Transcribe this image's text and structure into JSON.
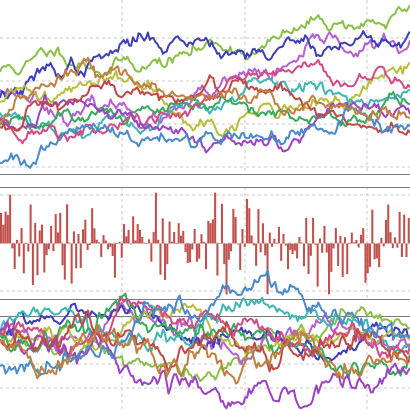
{
  "chart_data": [
    {
      "type": "line",
      "panel": "top",
      "grid": true,
      "x": {
        "range": [
          0,
          100
        ]
      },
      "y": {
        "range": [
          -4,
          12
        ]
      },
      "series": [
        {
          "color": "#8abf4a",
          "start": 5.5,
          "end": 11.8,
          "seed": 11,
          "vol": 0.28
        },
        {
          "color": "#b65fd1",
          "start": 3.8,
          "end": 8.2,
          "seed": 23,
          "vol": 0.3
        },
        {
          "color": "#3d3fb5",
          "start": 3.0,
          "end": 9.0,
          "seed": 37,
          "vol": 0.32
        },
        {
          "color": "#b9bd3e",
          "start": 2.6,
          "end": 6.9,
          "seed": 41,
          "vol": 0.3
        },
        {
          "color": "#3fb6b5",
          "start": 1.6,
          "end": 4.2,
          "seed": 53,
          "vol": 0.3
        },
        {
          "color": "#3aa95e",
          "start": 0.4,
          "end": 2.6,
          "seed": 61,
          "vol": 0.3
        },
        {
          "color": "#d44a86",
          "start": 1.1,
          "end": 3.9,
          "seed": 71,
          "vol": 0.3
        },
        {
          "color": "#9b43c1",
          "start": 0.9,
          "end": 1.6,
          "seed": 83,
          "vol": 0.28
        },
        {
          "color": "#c04848",
          "start": 0.2,
          "end": 0.1,
          "seed": 97,
          "vol": 0.3
        },
        {
          "color": "#4a8ac9",
          "start": -3.2,
          "end": -0.2,
          "seed": 101,
          "vol": 0.3
        },
        {
          "color": "#c08040",
          "start": 0.5,
          "end": 0.6,
          "seed": 113,
          "vol": 0.3
        }
      ]
    },
    {
      "type": "bar",
      "panel": "middle",
      "grid": true,
      "x": {
        "range": [
          0,
          100
        ]
      },
      "y": {
        "range": [
          -3.5,
          3.5
        ]
      },
      "series": [
        {
          "color": "#c0504d",
          "n": 180,
          "seed": 7,
          "amp": 3.1
        }
      ]
    },
    {
      "type": "line",
      "panel": "bottom",
      "grid": true,
      "x": {
        "range": [
          0,
          100
        ]
      },
      "y": {
        "range": [
          -8,
          1
        ]
      },
      "series": [
        {
          "color": "#8abf4a",
          "start": 0.0,
          "end": -0.3,
          "seed": 211,
          "vol": 0.35
        },
        {
          "color": "#b65fd1",
          "start": -0.2,
          "end": -2.5,
          "seed": 223,
          "vol": 0.4
        },
        {
          "color": "#3d3fb5",
          "start": -0.1,
          "end": -0.8,
          "seed": 237,
          "vol": 0.35
        },
        {
          "color": "#b9bd3e",
          "start": -0.4,
          "end": -0.6,
          "seed": 241,
          "vol": 0.35
        },
        {
          "color": "#3fb6b5",
          "start": -0.5,
          "end": -1.4,
          "seed": 253,
          "vol": 0.4
        },
        {
          "color": "#3aa95e",
          "start": -0.6,
          "end": -2.0,
          "seed": 261,
          "vol": 0.45
        },
        {
          "color": "#d44a86",
          "start": -0.3,
          "end": -1.2,
          "seed": 271,
          "vol": 0.4
        },
        {
          "color": "#9b43c1",
          "start": -0.2,
          "end": -3.4,
          "seed": 283,
          "vol": 0.45
        },
        {
          "color": "#c04848",
          "start": -1.0,
          "end": -3.0,
          "seed": 297,
          "vol": 0.45
        },
        {
          "color": "#4a8ac9",
          "start": -3.8,
          "end": -1.2,
          "seed": 301,
          "vol": 0.45
        },
        {
          "color": "#c08040",
          "start": -1.2,
          "end": -3.5,
          "seed": 313,
          "vol": 0.5
        }
      ]
    }
  ]
}
